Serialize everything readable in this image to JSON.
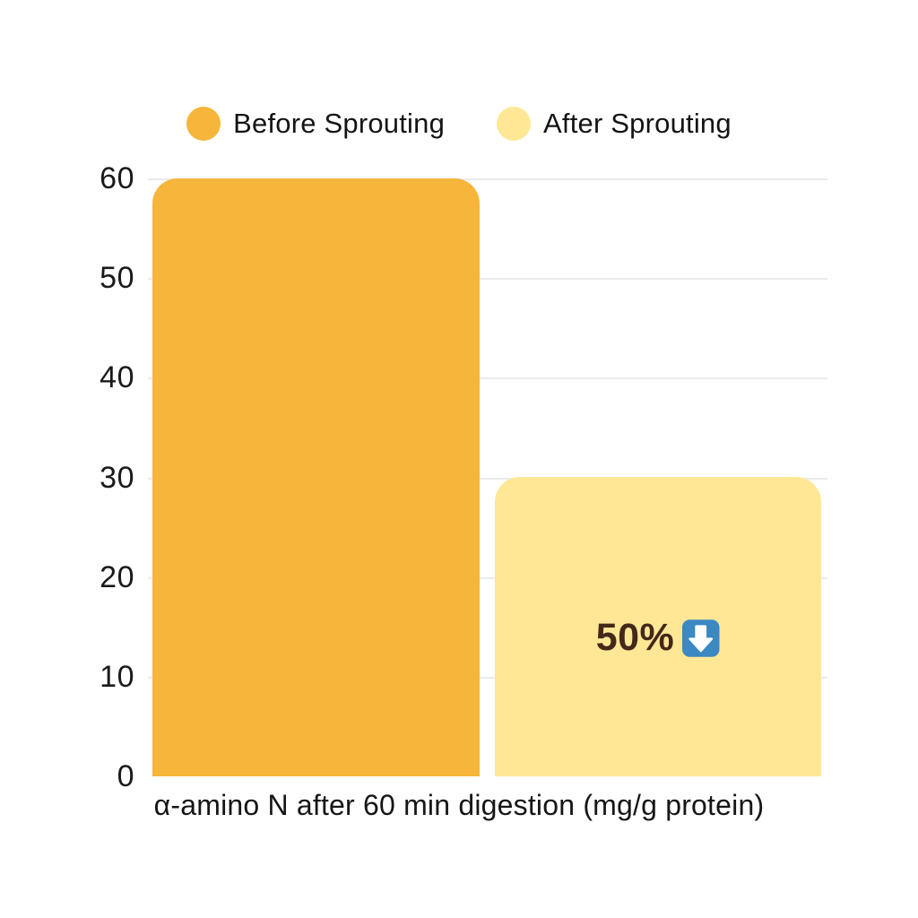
{
  "page": {
    "background": "#ffffff"
  },
  "legend": {
    "items": [
      {
        "label": "Before Sprouting",
        "color": "#F5B63B"
      },
      {
        "label": "After Sprouting",
        "color": "#FFE795"
      }
    ]
  },
  "chart_data": {
    "type": "bar",
    "categories": [
      "Before Sprouting",
      "After Sprouting"
    ],
    "values": [
      60,
      30
    ],
    "bar_colors": [
      "#F5B63B",
      "#FFE795"
    ],
    "title": "",
    "xlabel": "α-amino N after 60 min digestion (mg/g protein)",
    "ylabel": "",
    "ylim": [
      0,
      60
    ],
    "yticks": [
      0,
      10,
      20,
      30,
      40,
      50,
      60
    ],
    "grid": true,
    "gridline_color": "#EBEBEB",
    "legend_position": "top",
    "annotation": {
      "text": "50%",
      "icon": "down-arrow-emoji",
      "icon_background": "#3B88C3",
      "icon_arrow_color": "#FFFFFF",
      "text_color": "#44281A",
      "attached_to": "After Sprouting",
      "at_value": 14
    }
  }
}
